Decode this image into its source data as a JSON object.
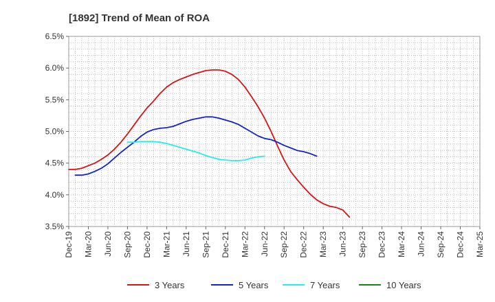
{
  "chart_data": {
    "type": "line",
    "title": "[1892]  Trend of Mean of ROA",
    "xlabel": "",
    "ylabel": "",
    "ylim": [
      3.5,
      6.5
    ],
    "y_ticks": [
      "3.5%",
      "4.0%",
      "4.5%",
      "5.0%",
      "5.5%",
      "6.0%",
      "6.5%"
    ],
    "x_ticks": [
      "Dec-19",
      "Mar-20",
      "Jun-20",
      "Sep-20",
      "Dec-20",
      "Mar-21",
      "Jun-21",
      "Sep-21",
      "Dec-21",
      "Mar-22",
      "Jun-22",
      "Sep-22",
      "Dec-22",
      "Mar-23",
      "Jun-23",
      "Sep-23",
      "Dec-23",
      "Mar-24",
      "Jun-24",
      "Sep-24",
      "Dec-24",
      "Mar-25"
    ],
    "grid": true,
    "legend_position": "bottom",
    "series": [
      {
        "name": "3 Years",
        "color": "#dd1111",
        "x_start": 0,
        "values": [
          4.4,
          4.4,
          4.42,
          4.46,
          4.5,
          4.56,
          4.63,
          4.72,
          4.83,
          4.96,
          5.1,
          5.24,
          5.37,
          5.48,
          5.6,
          5.7,
          5.77,
          5.82,
          5.86,
          5.9,
          5.93,
          5.96,
          5.97,
          5.97,
          5.95,
          5.9,
          5.82,
          5.7,
          5.55,
          5.39,
          5.21,
          5.0,
          4.77,
          4.55,
          4.37,
          4.24,
          4.12,
          4.01,
          3.92,
          3.86,
          3.82,
          3.8,
          3.76,
          3.65
        ]
      },
      {
        "name": "5 Years",
        "color": "#1122cc",
        "x_start": 1,
        "values": [
          4.31,
          4.31,
          4.33,
          4.37,
          4.42,
          4.49,
          4.58,
          4.67,
          4.75,
          4.83,
          4.92,
          4.99,
          5.03,
          5.05,
          5.06,
          5.08,
          5.12,
          5.16,
          5.19,
          5.21,
          5.23,
          5.23,
          5.21,
          5.18,
          5.15,
          5.11,
          5.05,
          4.99,
          4.93,
          4.89,
          4.87,
          4.83,
          4.78,
          4.74,
          4.7,
          4.68,
          4.65,
          4.61
        ]
      },
      {
        "name": "7 Years",
        "color": "#22eeee",
        "x_start": 9,
        "values": [
          4.83,
          4.83,
          4.84,
          4.84,
          4.84,
          4.83,
          4.81,
          4.78,
          4.75,
          4.72,
          4.69,
          4.66,
          4.62,
          4.59,
          4.56,
          4.55,
          4.54,
          4.54,
          4.55,
          4.58,
          4.6,
          4.61
        ]
      },
      {
        "name": "10 Years",
        "color": "#118811",
        "x_start": 0,
        "values": []
      }
    ]
  }
}
